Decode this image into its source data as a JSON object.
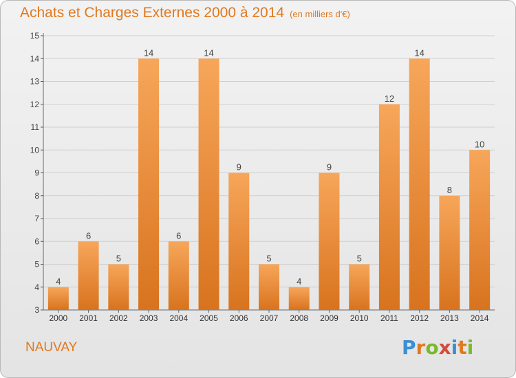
{
  "header": {
    "title": "Achats et Charges Externes 2000 à 2014",
    "unit": "(en milliers d'€)"
  },
  "footer": {
    "commune": "NAUVAY",
    "brand": "Proxiti",
    "brand_letters": [
      "P",
      "r",
      "o",
      "x",
      "i",
      "t",
      "i"
    ],
    "brand_colors": [
      "#3a8fd6",
      "#e0791f",
      "#7ab92b",
      "#d64a3a",
      "#3a8fd6",
      "#e0791f",
      "#7ab92b"
    ]
  },
  "chart_data": {
    "type": "bar",
    "title": "Achats et Charges Externes 2000 à 2014",
    "subtitle": "(en milliers d'€)",
    "categories": [
      "2000",
      "2001",
      "2002",
      "2003",
      "2004",
      "2005",
      "2006",
      "2007",
      "2008",
      "2009",
      "2010",
      "2011",
      "2012",
      "2013",
      "2014"
    ],
    "values": [
      4,
      6,
      5,
      14,
      6,
      14,
      9,
      5,
      4,
      9,
      5,
      12,
      14,
      8,
      10
    ],
    "ylim": [
      3,
      15
    ],
    "yticks": [
      3,
      4,
      5,
      6,
      7,
      8,
      9,
      10,
      11,
      12,
      13,
      14,
      15
    ],
    "grid": true,
    "bar_color_top": "#f7a65a",
    "bar_color_bottom": "#d8731e"
  }
}
